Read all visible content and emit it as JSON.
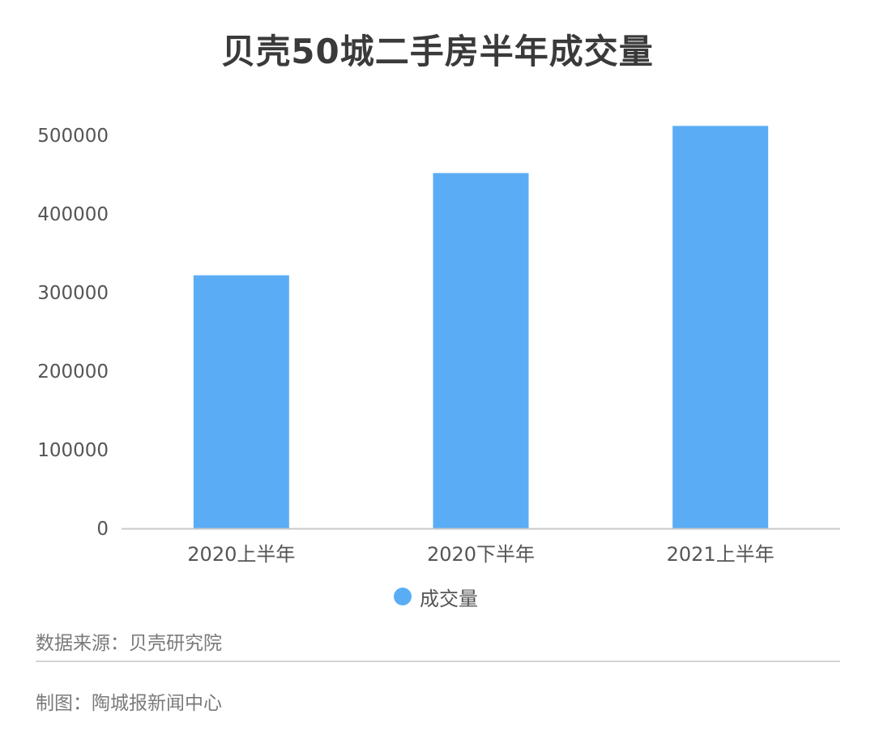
{
  "title": "贝壳50城二手房半年成交量",
  "chart_data": {
    "type": "bar",
    "categories": [
      "2020上半年",
      "2020下半年",
      "2021上半年"
    ],
    "series": [
      {
        "name": "成交量",
        "values": [
          322000,
          452000,
          512000
        ]
      }
    ],
    "ylim": [
      0,
      500000
    ],
    "yticks": [
      0,
      100000,
      200000,
      300000,
      400000,
      500000
    ],
    "grid": false,
    "legend_position": "bottom-center",
    "bar_color": "#5aadf5"
  },
  "legend": {
    "label": "成交量",
    "color": "#5aadf5"
  },
  "footer": {
    "source": "数据来源：贝壳研究院",
    "credit": "制图：陶城报新闻中心"
  }
}
